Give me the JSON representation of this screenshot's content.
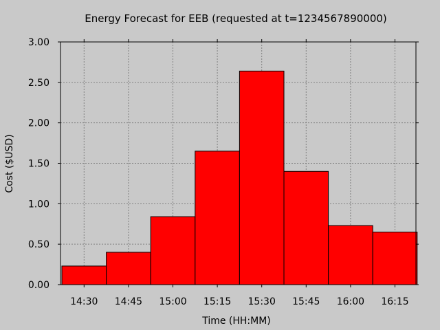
{
  "chart_data": {
    "type": "bar",
    "title": "Energy Forecast for EEB (requested at t=1234567890000)",
    "xlabel": "Time (HH:MM)",
    "ylabel": "Cost ($USD)",
    "categories": [
      "14:30",
      "14:45",
      "15:00",
      "15:15",
      "15:30",
      "15:45",
      "16:00",
      "16:15"
    ],
    "values": [
      0.23,
      0.4,
      0.84,
      1.65,
      2.64,
      1.4,
      0.73,
      0.65
    ],
    "y_ticks": [
      "0.00",
      "0.50",
      "1.00",
      "1.50",
      "2.00",
      "2.50",
      "3.00"
    ],
    "ylim": [
      0,
      3
    ],
    "grid": true,
    "colors": {
      "bar_fill": "#ff0000",
      "bar_stroke": "#000000",
      "plot_bg": "#c9c9c9",
      "grid": "#808080"
    }
  }
}
